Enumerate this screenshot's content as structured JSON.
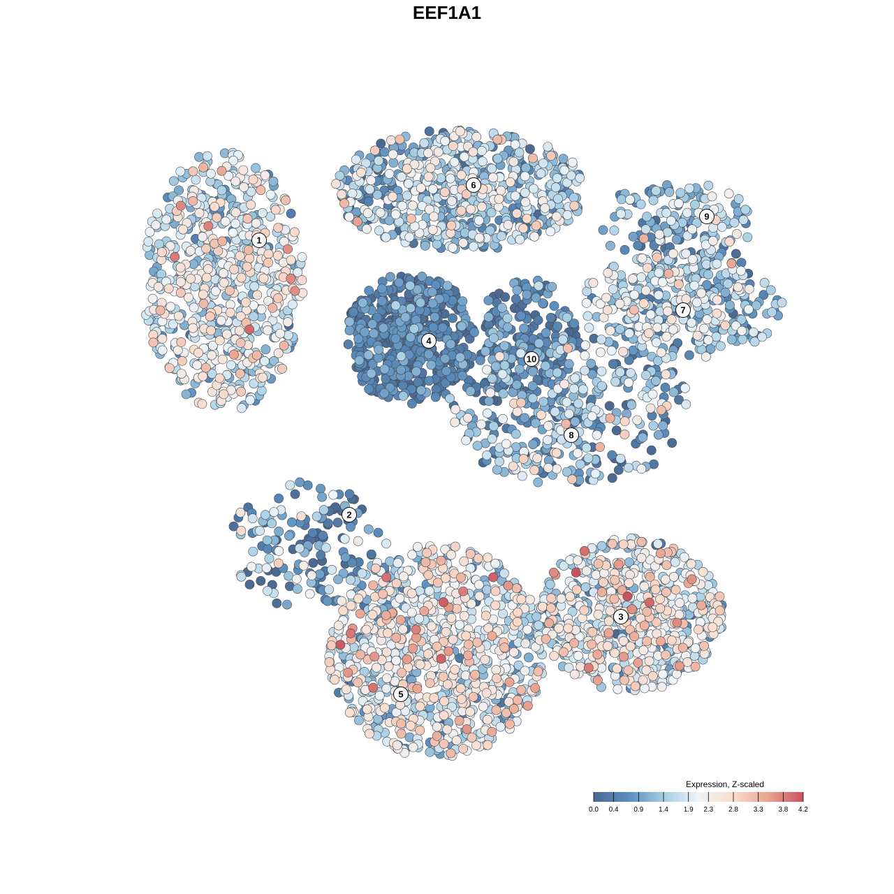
{
  "chart_data": {
    "type": "scatter",
    "title": "EEF1A1",
    "xlabel": "",
    "ylabel": "",
    "grid": false,
    "axes_visible": false,
    "legend": {
      "title": "Expression, Z-scaled",
      "placement": "bottom-right",
      "range": [
        0.0,
        4.2
      ],
      "tick_labels": [
        "0.0",
        "0.4",
        "0.9",
        "1.4",
        "1.9",
        "2.3",
        "2.8",
        "3.3",
        "3.8",
        "4.2"
      ],
      "tick_values": [
        0.0,
        0.4,
        0.9,
        1.4,
        1.9,
        2.3,
        2.8,
        3.3,
        3.8,
        4.2
      ]
    },
    "colorscale": [
      "#4a6a93",
      "#5b8dbd",
      "#a5cde3",
      "#eef4f8",
      "#f9dccd",
      "#e9a390",
      "#c9535e"
    ],
    "clusters": [
      {
        "label": "1",
        "center": [
          371,
          344
        ],
        "n_points": 700,
        "mean_expression": 1.9,
        "sd_expression": 0.7,
        "extent": [
          [
            205,
            215
          ],
          [
            435,
            590
          ]
        ]
      },
      {
        "label": "2",
        "center": [
          500,
          737
        ],
        "n_points": 150,
        "mean_expression": 0.9,
        "sd_expression": 0.8,
        "extent": [
          [
            320,
            690
          ],
          [
            560,
            870
          ]
        ]
      },
      {
        "label": "3",
        "center": [
          889,
          883
        ],
        "n_points": 700,
        "mean_expression": 1.9,
        "sd_expression": 0.75,
        "extent": [
          [
            770,
            770
          ],
          [
            1035,
            990
          ]
        ]
      },
      {
        "label": "4",
        "center": [
          614,
          488
        ],
        "n_points": 500,
        "mean_expression": 0.35,
        "sd_expression": 0.45,
        "extent": [
          [
            495,
            390
          ],
          [
            680,
            580
          ]
        ]
      },
      {
        "label": "5",
        "center": [
          574,
          994
        ],
        "n_points": 900,
        "mean_expression": 2.0,
        "sd_expression": 0.75,
        "extent": [
          [
            470,
            780
          ],
          [
            780,
            1085
          ]
        ]
      },
      {
        "label": "6",
        "center": [
          678,
          265
        ],
        "n_points": 650,
        "mean_expression": 1.4,
        "sd_expression": 0.7,
        "extent": [
          [
            480,
            185
          ],
          [
            840,
            360
          ]
        ]
      },
      {
        "label": "7",
        "center": [
          978,
          444
        ],
        "n_points": 330,
        "mean_expression": 1.5,
        "sd_expression": 0.65,
        "extent": [
          [
            830,
            360
          ],
          [
            1120,
            515
          ]
        ]
      },
      {
        "label": "8",
        "center": [
          818,
          623
        ],
        "n_points": 380,
        "mean_expression": 1.1,
        "sd_expression": 0.8,
        "extent": [
          [
            640,
            480
          ],
          [
            990,
            695
          ]
        ]
      },
      {
        "label": "9",
        "center": [
          1012,
          310
        ],
        "n_points": 180,
        "mean_expression": 1.3,
        "sd_expression": 0.65,
        "extent": [
          [
            860,
            255
          ],
          [
            1078,
            390
          ]
        ]
      },
      {
        "label": "10",
        "center": [
          761,
          514
        ],
        "n_points": 170,
        "mean_expression": 0.45,
        "sd_expression": 0.5,
        "extent": [
          [
            680,
            400
          ],
          [
            830,
            565
          ]
        ]
      }
    ]
  }
}
